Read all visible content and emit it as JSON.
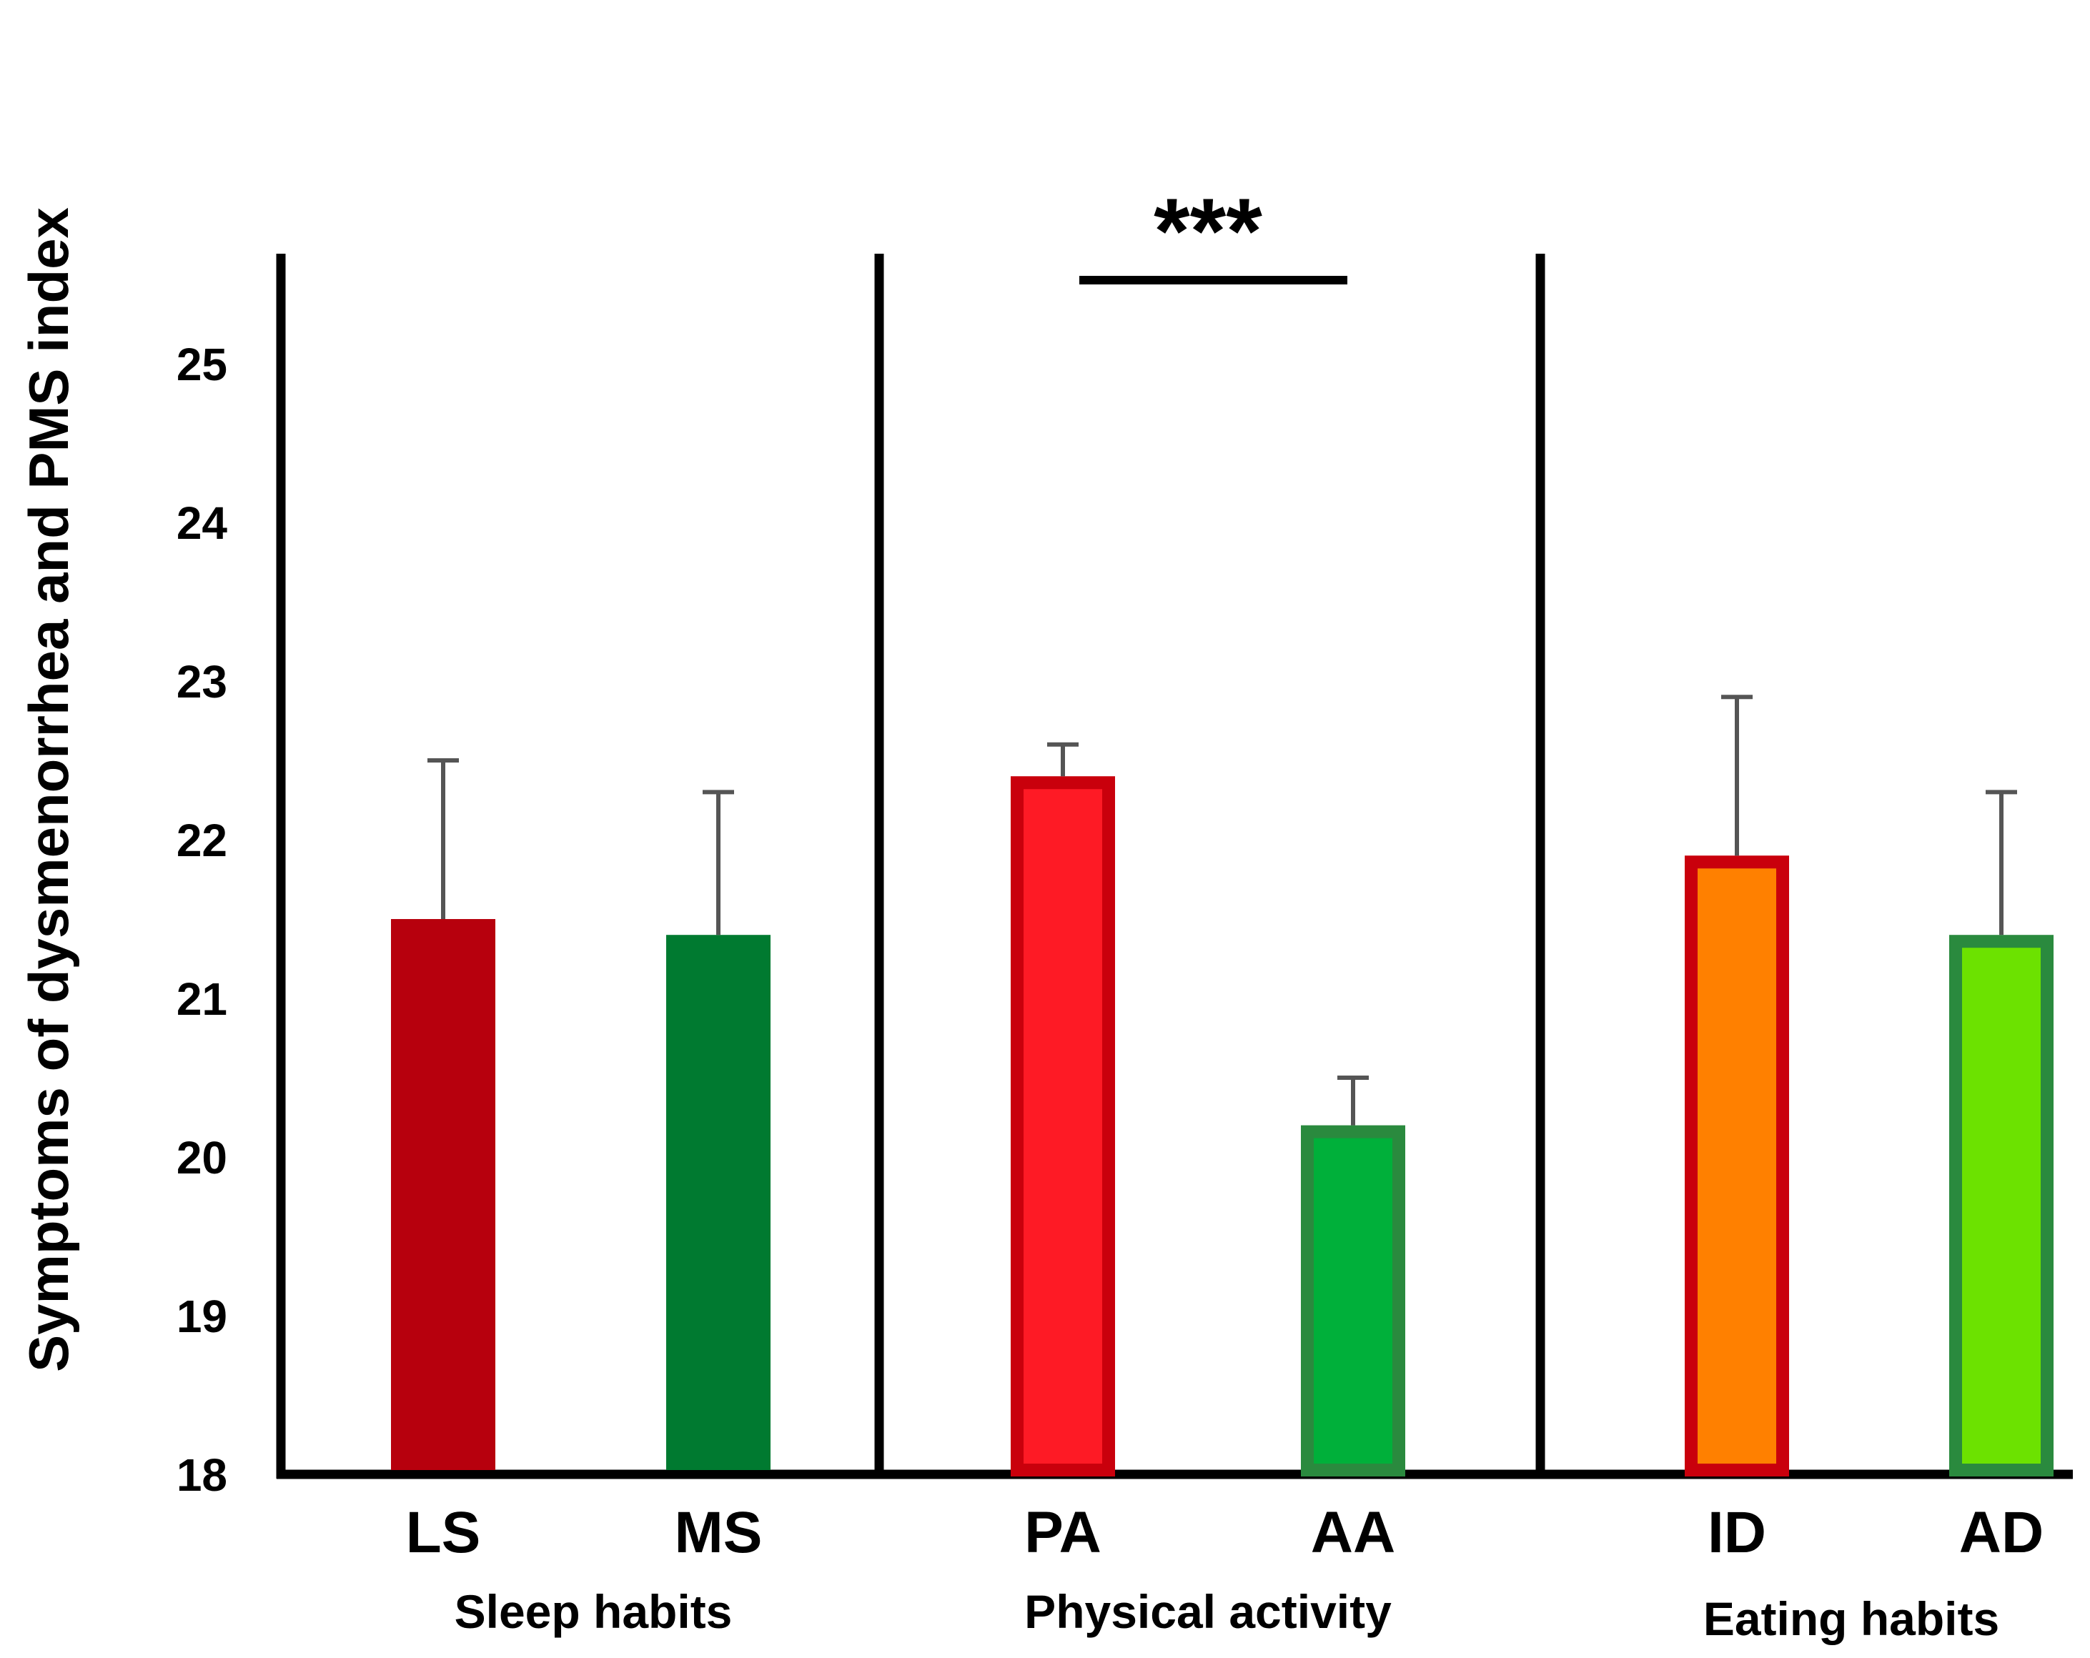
{
  "chart_data": {
    "type": "bar",
    "title": "",
    "ylabel": "Symptoms of dysmenorrhea and PMS index",
    "xlabel": "",
    "ylim": [
      18,
      25.4
    ],
    "yticks": [
      "18",
      "19",
      "20",
      "21",
      "22",
      "23",
      "24",
      "25"
    ],
    "grid": false,
    "categories": [
      "LS",
      "MS",
      "PA",
      "AA",
      "ID",
      "AD"
    ],
    "values": [
      21.5,
      21.4,
      22.4,
      20.2,
      21.9,
      21.4
    ],
    "error_upper": [
      22.5,
      22.3,
      22.6,
      20.5,
      22.9,
      22.3
    ],
    "bar_fill_colors": [
      "#b7000d",
      "#007a30",
      "#fe1a25",
      "#00b03a",
      "#ff8000",
      "#6ce200"
    ],
    "bar_edge_colors": [
      "#b7000d",
      "#007a30",
      "#c9000c",
      "#2a8a3e",
      "#c9000c",
      "#2a8a3e"
    ],
    "groups": [
      {
        "label": "Sleep habits",
        "categories": [
          "LS",
          "MS"
        ]
      },
      {
        "label": "Physical activity",
        "categories": [
          "PA",
          "AA"
        ]
      },
      {
        "label": "Eating habits",
        "categories": [
          "ID",
          "AD"
        ]
      }
    ],
    "annotations": [
      {
        "text": "***",
        "between": [
          "PA",
          "AA"
        ]
      }
    ]
  }
}
